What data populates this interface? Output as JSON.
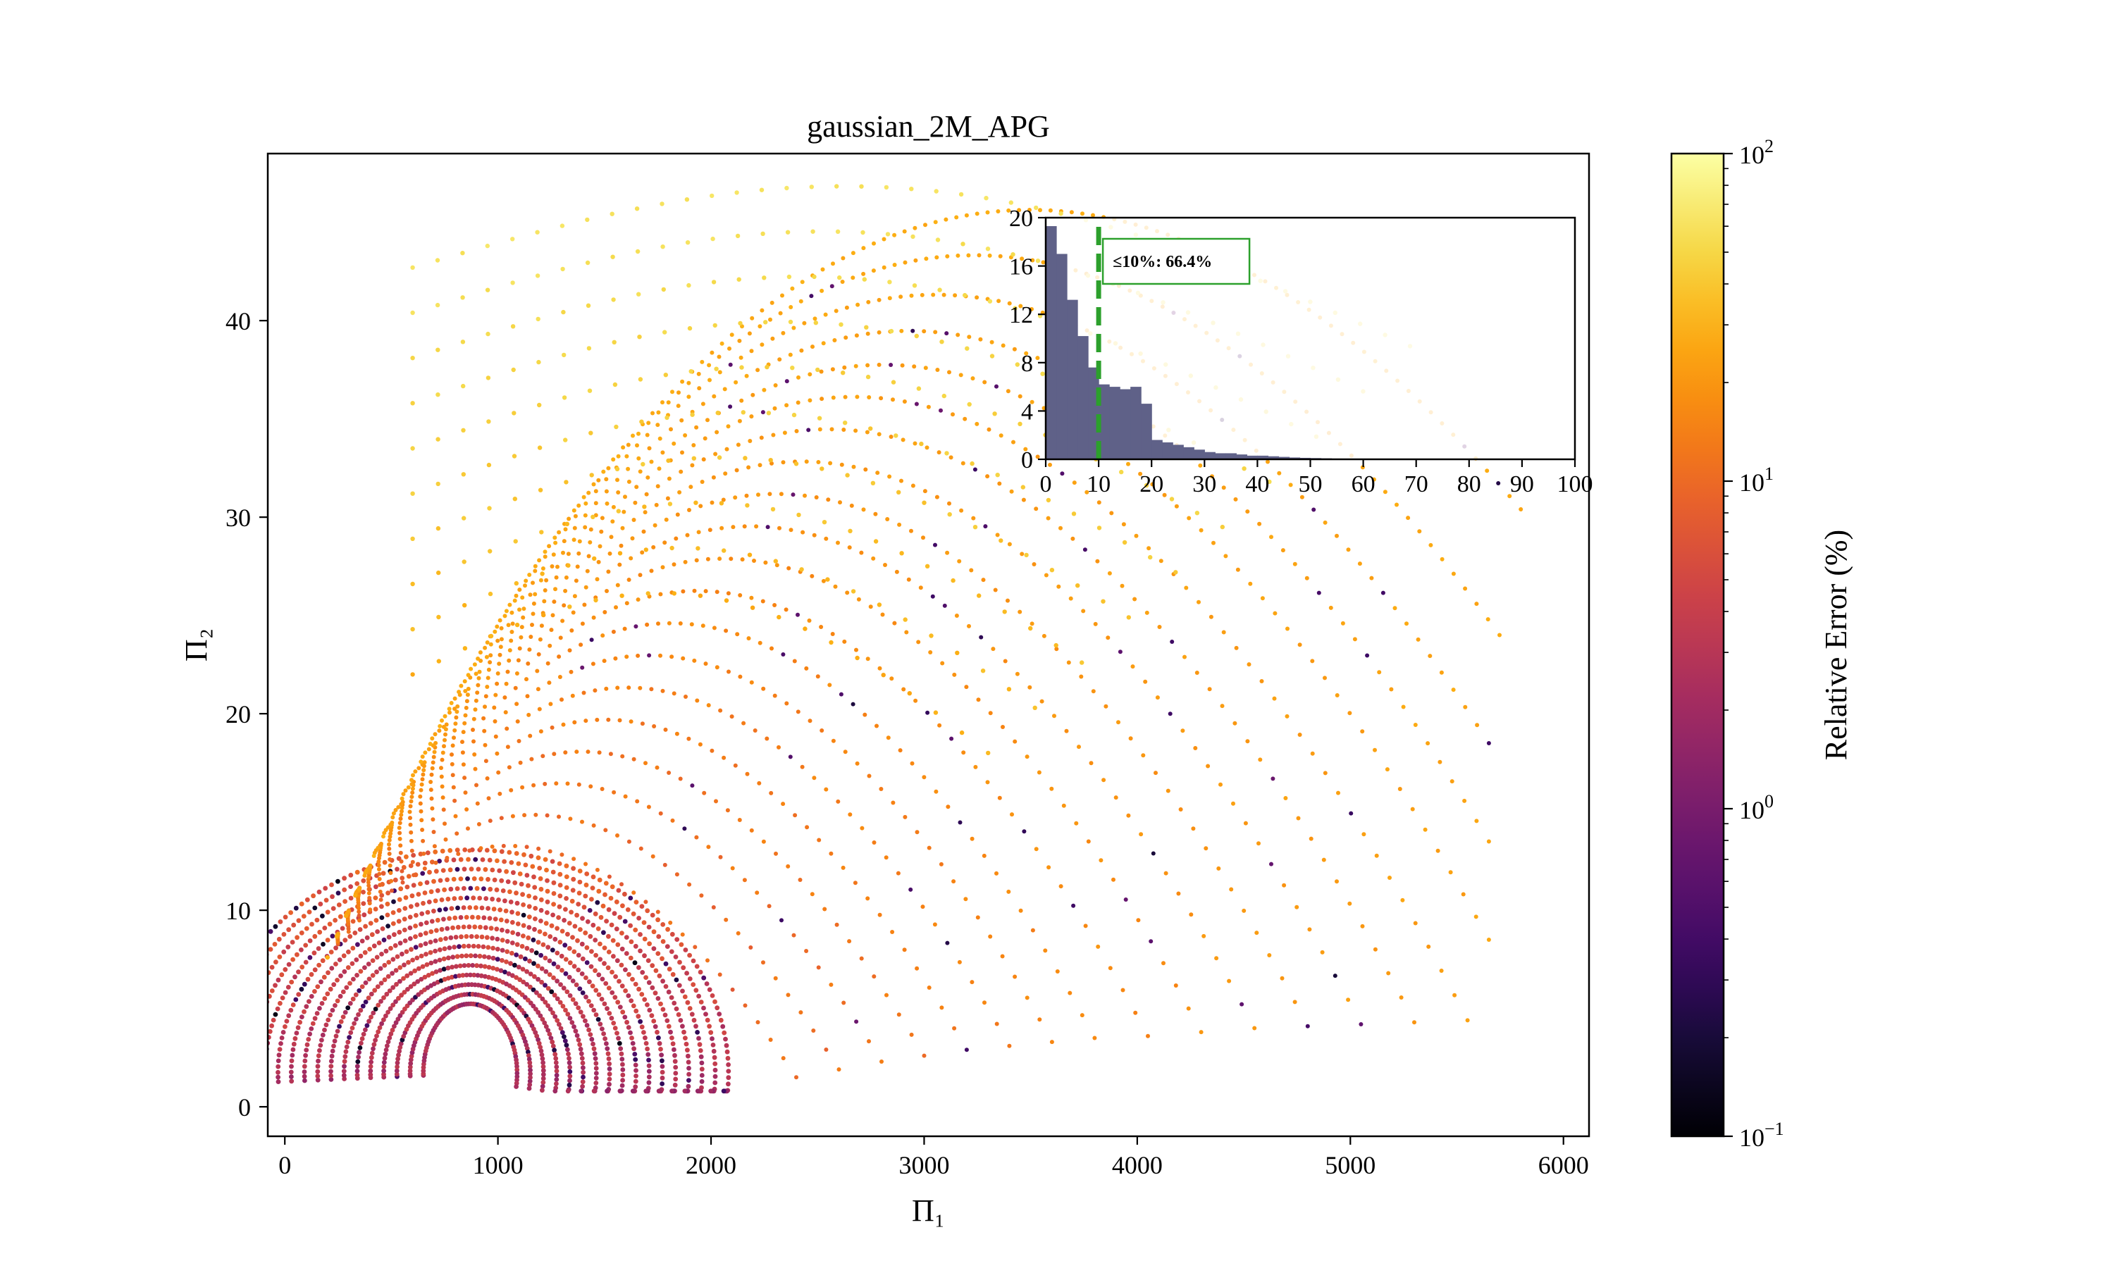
{
  "chart_data": {
    "type": "scatter",
    "title": "gaussian_2M_APG",
    "xlabel": "Π₁",
    "ylabel": "Π₂",
    "xlim": [
      -80,
      6120
    ],
    "ylim": [
      -1.5,
      48.5
    ],
    "xticks": [
      0,
      1000,
      2000,
      3000,
      4000,
      5000,
      6000
    ],
    "yticks": [
      0,
      10,
      20,
      30,
      40
    ],
    "grid": false,
    "colormap": "inferno",
    "color_scale": "log",
    "colorbar": {
      "label": "Relative Error (%)",
      "range": [
        0.1,
        100
      ],
      "ticks": [
        {
          "value": 100,
          "mantissa": "10",
          "exponent": "2"
        },
        {
          "value": 10,
          "mantissa": "10",
          "exponent": "1"
        },
        {
          "value": 1,
          "mantissa": "10",
          "exponent": "0"
        },
        {
          "value": 0.1,
          "mantissa": "10",
          "exponent": "−1"
        }
      ]
    },
    "scatter_families": {
      "inner_center": [
        870,
        3.5
      ],
      "inner_count": 17,
      "inner_radius_step": 62,
      "inner_y_scale": 0.0079,
      "outer_arcs": [
        {
          "end_x": 2400,
          "end_y": 1.5
        },
        {
          "end_x": 2600,
          "end_y": 1.9
        },
        {
          "end_x": 2800,
          "end_y": 2.3
        },
        {
          "end_x": 3000,
          "end_y": 2.6
        },
        {
          "end_x": 3200,
          "end_y": 2.9
        },
        {
          "end_x": 3400,
          "end_y": 3.1
        },
        {
          "end_x": 3600,
          "end_y": 3.3
        },
        {
          "end_x": 3800,
          "end_y": 3.5
        },
        {
          "end_x": 4050,
          "end_y": 3.6
        },
        {
          "end_x": 4300,
          "end_y": 3.8
        },
        {
          "end_x": 4550,
          "end_y": 4.0
        },
        {
          "end_x": 4800,
          "end_y": 4.1
        },
        {
          "end_x": 5050,
          "end_y": 4.2
        },
        {
          "end_x": 5300,
          "end_y": 4.3
        },
        {
          "end_x": 5550,
          "end_y": 4.4
        },
        {
          "end_x": 5650,
          "end_y": 8.5
        },
        {
          "end_x": 5650,
          "end_y": 13.5
        },
        {
          "end_x": 5650,
          "end_y": 18.5
        },
        {
          "end_x": 5700,
          "end_y": 24
        },
        {
          "end_x": 5800,
          "end_y": 30.4
        }
      ]
    },
    "inset_histogram": {
      "type": "bar",
      "xlim": [
        0,
        100
      ],
      "ylim": [
        0,
        20
      ],
      "xticks": [
        0,
        10,
        20,
        30,
        40,
        50,
        60,
        70,
        80,
        90,
        100
      ],
      "yticks": [
        0,
        4,
        8,
        12,
        16,
        20
      ],
      "bin_width": 2,
      "values": [
        19.3,
        17.0,
        13.2,
        10.2,
        7.6,
        6.2,
        6.0,
        5.8,
        6.0,
        4.6,
        1.6,
        1.4,
        1.2,
        1.0,
        0.8,
        0.6,
        0.5,
        0.5,
        0.4,
        0.3,
        0.3,
        0.25,
        0.2,
        0.15,
        0.12,
        0.1,
        0.08,
        0.06,
        0.05,
        0.04,
        0.03,
        0.02,
        0.02,
        0.01,
        0.01
      ],
      "bar_color": "#5f6188",
      "threshold": 10,
      "threshold_color": "#2ca02c",
      "annotation": "≤10%: 66.4%"
    }
  }
}
